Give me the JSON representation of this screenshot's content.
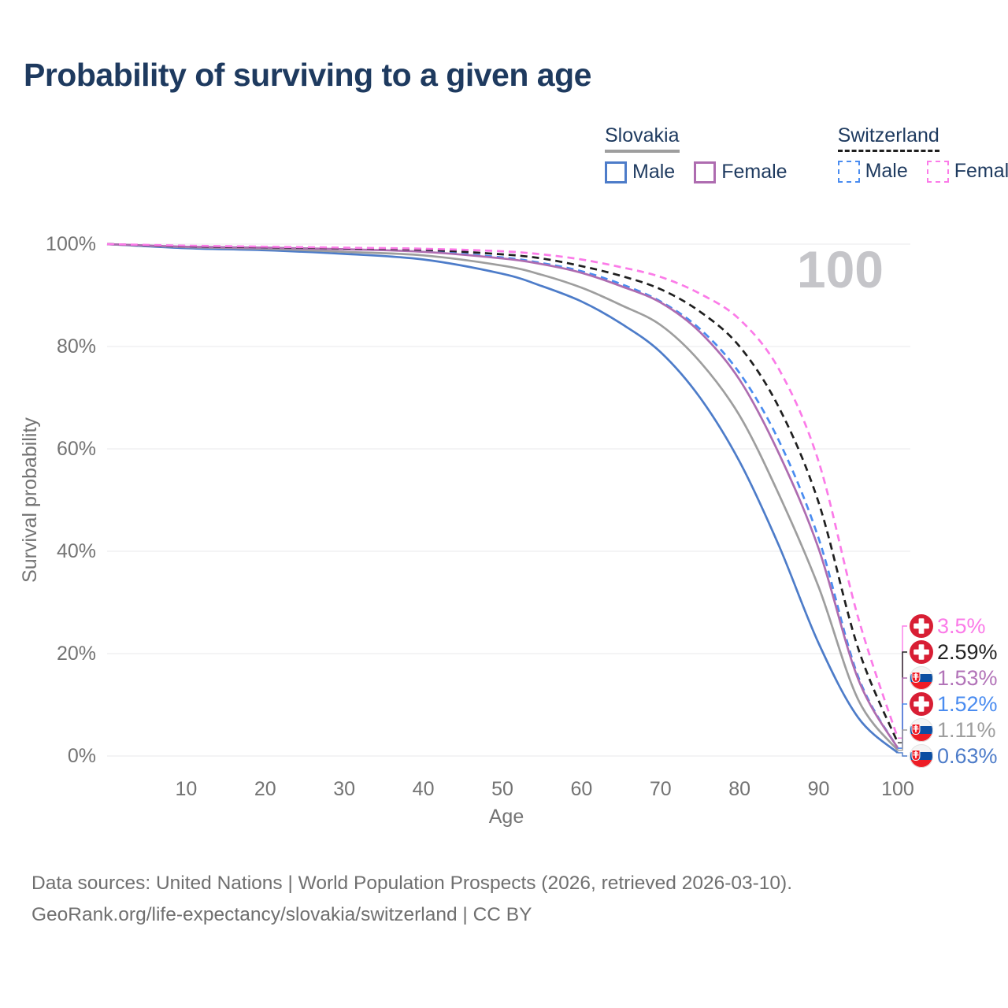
{
  "title": "Probability of surviving to a given age",
  "watermark": "100",
  "legend": {
    "groups": [
      {
        "label": "Slovakia",
        "style": "solid",
        "underline_color": "#9e9e9e",
        "items": [
          {
            "label": "Male",
            "color": "#4d7cc9",
            "dash": false
          },
          {
            "label": "Female",
            "color": "#ae6cb0",
            "dash": false
          }
        ]
      },
      {
        "label": "Switzerland",
        "style": "dashed",
        "underline_color": "#1f1f1f",
        "items": [
          {
            "label": "Male",
            "color": "#4a8cf0",
            "dash": true
          },
          {
            "label": "Female",
            "color": "#fb7be8",
            "dash": true
          }
        ]
      }
    ]
  },
  "chart_data": {
    "type": "line",
    "title": "Probability of surviving to a given age",
    "xlabel": "Age",
    "ylabel": "Survival probability",
    "xlim": [
      0,
      101
    ],
    "ylim": [
      0,
      100
    ],
    "x_ticks": [
      10,
      20,
      30,
      40,
      50,
      60,
      70,
      80,
      90,
      100
    ],
    "y_ticks": [
      0,
      20,
      40,
      60,
      80,
      100
    ],
    "y_tick_suffix": "%",
    "grid": "horizontal",
    "highlight_age_watermark": "100",
    "ages": [
      0,
      10,
      20,
      30,
      40,
      50,
      55,
      60,
      65,
      70,
      75,
      80,
      85,
      90,
      95,
      100
    ],
    "series": [
      {
        "name": "Switzerland Female",
        "country": "Switzerland",
        "sex": "Female",
        "color": "#fb7be8",
        "dash": true,
        "flag": "ch",
        "end_label": "3.5%",
        "label_color": "#fb7be8",
        "values": [
          100,
          99.7,
          99.5,
          99.3,
          99.1,
          98.6,
          98.0,
          97.0,
          95.5,
          93.6,
          90.3,
          85.3,
          75.5,
          57.5,
          27.0,
          3.5
        ]
      },
      {
        "name": "Switzerland Both sexes",
        "country": "Switzerland",
        "sex": "All",
        "color": "#1f1f1f",
        "dash": true,
        "flag": "ch",
        "end_label": "2.59%",
        "label_color": "#222222",
        "values": [
          100,
          99.6,
          99.4,
          99.2,
          98.9,
          98.0,
          97.2,
          95.7,
          93.8,
          91.2,
          86.8,
          80.0,
          68.0,
          49.5,
          21.0,
          2.59
        ]
      },
      {
        "name": "Slovakia Female",
        "country": "Slovakia",
        "sex": "Female",
        "color": "#ae6cb0",
        "dash": false,
        "flag": "sk",
        "end_label": "1.53%",
        "label_color": "#b273b8",
        "values": [
          100,
          99.5,
          99.3,
          99.0,
          98.5,
          97.2,
          96.1,
          94.4,
          91.8,
          88.6,
          82.8,
          73.5,
          59.0,
          40.5,
          15.0,
          1.53
        ]
      },
      {
        "name": "Switzerland Male",
        "country": "Switzerland",
        "sex": "Male",
        "color": "#4a8cf0",
        "dash": true,
        "flag": "ch",
        "end_label": "1.52%",
        "label_color": "#4a8cf0",
        "values": [
          100,
          99.5,
          99.3,
          99.0,
          98.6,
          97.4,
          96.3,
          94.7,
          92.2,
          88.8,
          83.4,
          74.8,
          61.5,
          42.5,
          15.5,
          1.52
        ]
      },
      {
        "name": "Slovakia Both sexes",
        "country": "Slovakia",
        "sex": "All",
        "color": "#9e9e9e",
        "dash": false,
        "flag": "sk",
        "end_label": "1.11%",
        "label_color": "#9e9e9e",
        "values": [
          100,
          99.4,
          99.1,
          98.5,
          97.8,
          95.8,
          94.0,
          91.5,
          88.1,
          84.2,
          77.0,
          66.5,
          51.0,
          33.0,
          11.0,
          1.11
        ]
      },
      {
        "name": "Slovakia Male",
        "country": "Slovakia",
        "sex": "Male",
        "color": "#4d7cc9",
        "dash": false,
        "flag": "sk",
        "end_label": "0.63%",
        "label_color": "#4d7cc9",
        "values": [
          100,
          99.2,
          98.8,
          98.1,
          97.0,
          94.2,
          91.8,
          88.8,
          84.5,
          78.9,
          70.0,
          57.5,
          41.0,
          22.0,
          7.5,
          0.63
        ]
      }
    ]
  },
  "flags": {
    "ch": {
      "name": "switzerland-flag",
      "red": "#d81e34",
      "cross": "#ffffff"
    },
    "sk": {
      "name": "slovakia-flag",
      "white": "#f4f4f4",
      "blue": "#0b4ea2",
      "red": "#ee1c25"
    }
  },
  "footer": {
    "line1": "Data sources: United Nations | World Population Prospects (2026, retrieved 2026-03-10).",
    "line2": "GeoRank.org/life-expectancy/slovakia/switzerland | CC BY"
  }
}
